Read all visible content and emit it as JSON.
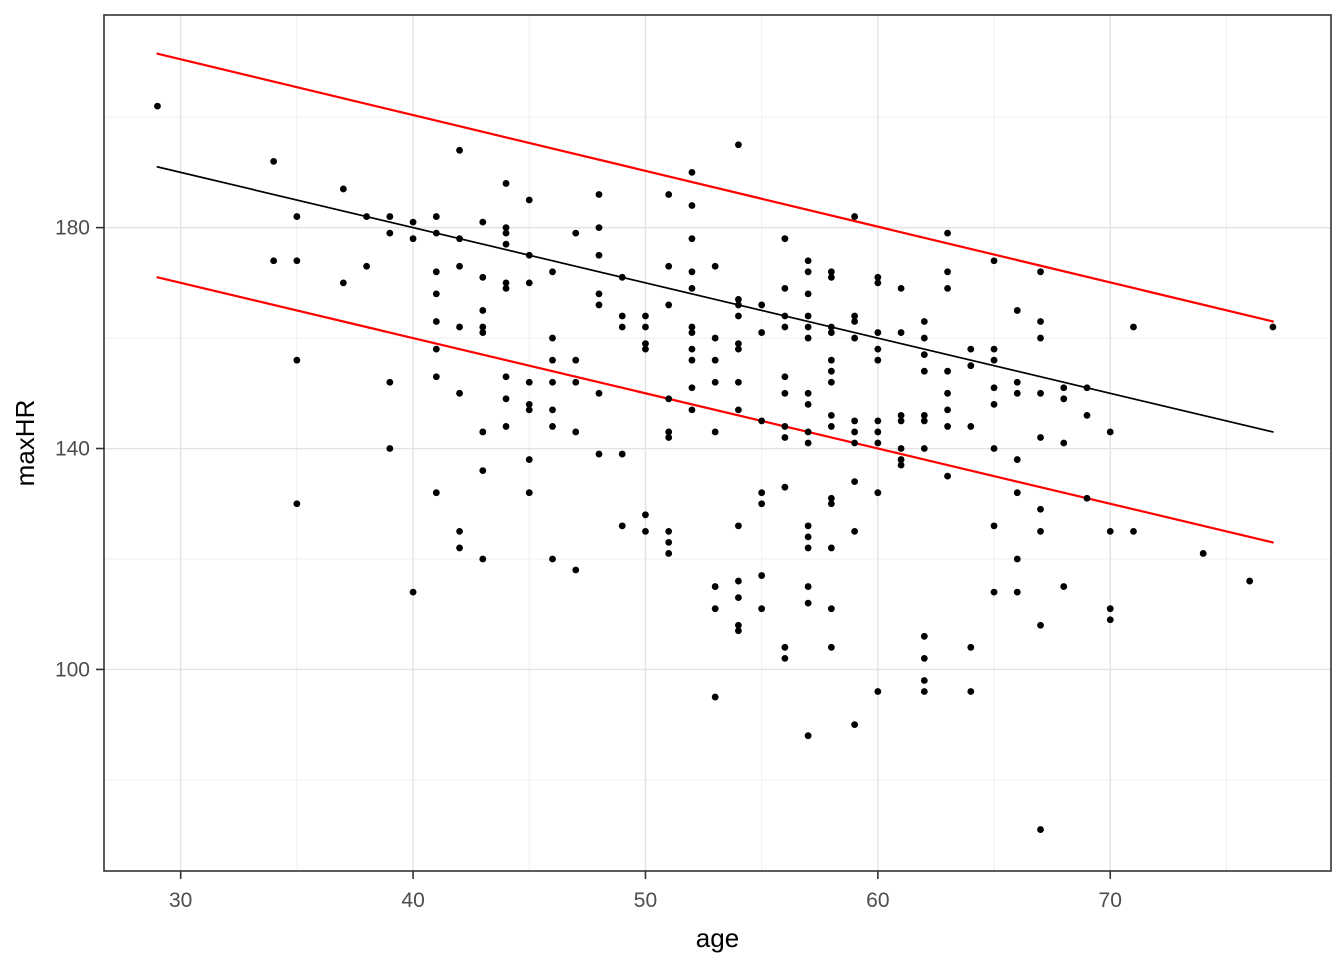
{
  "chart_data": {
    "type": "scatter",
    "title": "",
    "xlabel": "age",
    "ylabel": "maxHR",
    "xlim": [
      26.7,
      79.5
    ],
    "ylim": [
      63.5,
      218.5
    ],
    "x_major_ticks": [
      30,
      40,
      50,
      60,
      70
    ],
    "x_minor_ticks": [
      35,
      45,
      55,
      65,
      75
    ],
    "y_major_ticks": [
      100,
      140,
      180
    ],
    "y_minor_ticks": [
      80,
      120,
      160,
      200
    ],
    "grid": true,
    "legend_position": "none",
    "point_color": "#000000",
    "point_radius": 3.4,
    "lines": [
      {
        "name": "fit-line",
        "color": "#000000",
        "width": 1.7,
        "x": [
          29,
          77
        ],
        "y": [
          191,
          143
        ]
      },
      {
        "name": "upper-prediction-line",
        "color": "#FF0000",
        "width": 2.2,
        "x": [
          29,
          77
        ],
        "y": [
          211.5,
          163
        ]
      },
      {
        "name": "lower-prediction-line",
        "color": "#FF0000",
        "width": 2.2,
        "x": [
          29,
          77
        ],
        "y": [
          171,
          123
        ]
      }
    ],
    "points": [
      [
        29,
        202
      ],
      [
        34,
        192
      ],
      [
        34,
        174
      ],
      [
        35,
        182
      ],
      [
        35,
        174
      ],
      [
        35,
        156
      ],
      [
        35,
        130
      ],
      [
        37,
        187
      ],
      [
        37,
        170
      ],
      [
        38,
        182
      ],
      [
        38,
        173
      ],
      [
        39,
        182
      ],
      [
        39,
        179
      ],
      [
        39,
        152
      ],
      [
        39,
        140
      ],
      [
        40,
        181
      ],
      [
        40,
        178
      ],
      [
        40,
        114
      ],
      [
        41,
        182
      ],
      [
        41,
        179
      ],
      [
        41,
        172
      ],
      [
        41,
        168
      ],
      [
        41,
        163
      ],
      [
        41,
        158
      ],
      [
        41,
        153
      ],
      [
        41,
        132
      ],
      [
        42,
        194
      ],
      [
        42,
        178
      ],
      [
        42,
        173
      ],
      [
        42,
        162
      ],
      [
        42,
        150
      ],
      [
        42,
        125
      ],
      [
        42,
        122
      ],
      [
        43,
        181
      ],
      [
        43,
        171
      ],
      [
        43,
        165
      ],
      [
        43,
        162
      ],
      [
        43,
        161
      ],
      [
        43,
        143
      ],
      [
        43,
        136
      ],
      [
        43,
        120
      ],
      [
        44,
        188
      ],
      [
        44,
        180
      ],
      [
        44,
        179
      ],
      [
        44,
        177
      ],
      [
        44,
        170
      ],
      [
        44,
        169
      ],
      [
        44,
        153
      ],
      [
        44,
        149
      ],
      [
        44,
        144
      ],
      [
        45,
        185
      ],
      [
        45,
        175
      ],
      [
        45,
        170
      ],
      [
        45,
        152
      ],
      [
        45,
        148
      ],
      [
        45,
        147
      ],
      [
        45,
        138
      ],
      [
        45,
        132
      ],
      [
        46,
        172
      ],
      [
        46,
        160
      ],
      [
        46,
        156
      ],
      [
        46,
        152
      ],
      [
        46,
        147
      ],
      [
        46,
        144
      ],
      [
        46,
        120
      ],
      [
        47,
        179
      ],
      [
        47,
        156
      ],
      [
        47,
        152
      ],
      [
        47,
        143
      ],
      [
        47,
        118
      ],
      [
        48,
        186
      ],
      [
        48,
        180
      ],
      [
        48,
        175
      ],
      [
        48,
        168
      ],
      [
        48,
        166
      ],
      [
        48,
        150
      ],
      [
        48,
        139
      ],
      [
        49,
        171
      ],
      [
        49,
        164
      ],
      [
        49,
        162
      ],
      [
        49,
        139
      ],
      [
        49,
        126
      ],
      [
        50,
        164
      ],
      [
        50,
        162
      ],
      [
        50,
        159
      ],
      [
        50,
        158
      ],
      [
        50,
        128
      ],
      [
        50,
        125
      ],
      [
        51,
        186
      ],
      [
        51,
        173
      ],
      [
        51,
        166
      ],
      [
        51,
        149
      ],
      [
        51,
        143
      ],
      [
        51,
        142
      ],
      [
        51,
        125
      ],
      [
        51,
        123
      ],
      [
        51,
        121
      ],
      [
        52,
        190
      ],
      [
        52,
        184
      ],
      [
        52,
        178
      ],
      [
        52,
        172
      ],
      [
        52,
        169
      ],
      [
        52,
        162
      ],
      [
        52,
        161
      ],
      [
        52,
        158
      ],
      [
        52,
        156
      ],
      [
        52,
        151
      ],
      [
        52,
        147
      ],
      [
        53,
        173
      ],
      [
        53,
        160
      ],
      [
        53,
        156
      ],
      [
        53,
        152
      ],
      [
        53,
        143
      ],
      [
        53,
        115
      ],
      [
        53,
        111
      ],
      [
        53,
        95
      ],
      [
        54,
        195
      ],
      [
        54,
        167
      ],
      [
        54,
        166
      ],
      [
        54,
        164
      ],
      [
        54,
        159
      ],
      [
        54,
        158
      ],
      [
        54,
        152
      ],
      [
        54,
        147
      ],
      [
        54,
        126
      ],
      [
        54,
        116
      ],
      [
        54,
        113
      ],
      [
        54,
        108
      ],
      [
        54,
        107
      ],
      [
        55,
        166
      ],
      [
        55,
        161
      ],
      [
        55,
        145
      ],
      [
        55,
        132
      ],
      [
        55,
        130
      ],
      [
        55,
        117
      ],
      [
        55,
        111
      ],
      [
        56,
        178
      ],
      [
        56,
        169
      ],
      [
        56,
        164
      ],
      [
        56,
        162
      ],
      [
        56,
        153
      ],
      [
        56,
        150
      ],
      [
        56,
        144
      ],
      [
        56,
        142
      ],
      [
        56,
        133
      ],
      [
        56,
        104
      ],
      [
        56,
        102
      ],
      [
        57,
        174
      ],
      [
        57,
        172
      ],
      [
        57,
        168
      ],
      [
        57,
        164
      ],
      [
        57,
        162
      ],
      [
        57,
        160
      ],
      [
        57,
        150
      ],
      [
        57,
        148
      ],
      [
        57,
        143
      ],
      [
        57,
        141
      ],
      [
        57,
        126
      ],
      [
        57,
        124
      ],
      [
        57,
        122
      ],
      [
        57,
        115
      ],
      [
        57,
        112
      ],
      [
        57,
        88
      ],
      [
        58,
        172
      ],
      [
        58,
        171
      ],
      [
        58,
        162
      ],
      [
        58,
        161
      ],
      [
        58,
        156
      ],
      [
        58,
        154
      ],
      [
        58,
        152
      ],
      [
        58,
        146
      ],
      [
        58,
        144
      ],
      [
        58,
        131
      ],
      [
        58,
        130
      ],
      [
        58,
        122
      ],
      [
        58,
        111
      ],
      [
        58,
        104
      ],
      [
        59,
        182
      ],
      [
        59,
        164
      ],
      [
        59,
        163
      ],
      [
        59,
        160
      ],
      [
        59,
        145
      ],
      [
        59,
        143
      ],
      [
        59,
        141
      ],
      [
        59,
        134
      ],
      [
        59,
        125
      ],
      [
        59,
        90
      ],
      [
        60,
        171
      ],
      [
        60,
        170
      ],
      [
        60,
        161
      ],
      [
        60,
        158
      ],
      [
        60,
        156
      ],
      [
        60,
        145
      ],
      [
        60,
        143
      ],
      [
        60,
        141
      ],
      [
        60,
        132
      ],
      [
        60,
        96
      ],
      [
        61,
        169
      ],
      [
        61,
        161
      ],
      [
        61,
        146
      ],
      [
        61,
        145
      ],
      [
        61,
        140
      ],
      [
        61,
        138
      ],
      [
        61,
        137
      ],
      [
        62,
        163
      ],
      [
        62,
        160
      ],
      [
        62,
        157
      ],
      [
        62,
        154
      ],
      [
        62,
        146
      ],
      [
        62,
        145
      ],
      [
        62,
        140
      ],
      [
        62,
        106
      ],
      [
        62,
        102
      ],
      [
        62,
        98
      ],
      [
        62,
        96
      ],
      [
        63,
        179
      ],
      [
        63,
        172
      ],
      [
        63,
        169
      ],
      [
        63,
        154
      ],
      [
        63,
        150
      ],
      [
        63,
        147
      ],
      [
        63,
        144
      ],
      [
        63,
        135
      ],
      [
        64,
        158
      ],
      [
        64,
        155
      ],
      [
        64,
        144
      ],
      [
        64,
        104
      ],
      [
        64,
        96
      ],
      [
        65,
        174
      ],
      [
        65,
        158
      ],
      [
        65,
        156
      ],
      [
        65,
        151
      ],
      [
        65,
        148
      ],
      [
        65,
        140
      ],
      [
        65,
        126
      ],
      [
        65,
        114
      ],
      [
        66,
        165
      ],
      [
        66,
        152
      ],
      [
        66,
        150
      ],
      [
        66,
        138
      ],
      [
        66,
        132
      ],
      [
        66,
        120
      ],
      [
        66,
        114
      ],
      [
        67,
        172
      ],
      [
        67,
        163
      ],
      [
        67,
        160
      ],
      [
        67,
        150
      ],
      [
        67,
        142
      ],
      [
        67,
        129
      ],
      [
        67,
        125
      ],
      [
        67,
        108
      ],
      [
        67,
        71
      ],
      [
        68,
        151
      ],
      [
        68,
        149
      ],
      [
        68,
        141
      ],
      [
        68,
        115
      ],
      [
        69,
        151
      ],
      [
        69,
        146
      ],
      [
        69,
        131
      ],
      [
        70,
        143
      ],
      [
        70,
        125
      ],
      [
        70,
        111
      ],
      [
        70,
        109
      ],
      [
        71,
        162
      ],
      [
        71,
        125
      ],
      [
        74,
        121
      ],
      [
        76,
        116
      ],
      [
        77,
        162
      ]
    ],
    "style": {
      "panel_bg": "#FFFFFF",
      "panel_border": "#333333",
      "grid_major": "#E3E3E3",
      "grid_minor": "#EFEFEF",
      "tick_color": "#333333",
      "tick_label_color": "#4D4D4D",
      "axis_title_color": "#000000",
      "tick_label_size": 21,
      "axis_title_size": 26
    }
  }
}
